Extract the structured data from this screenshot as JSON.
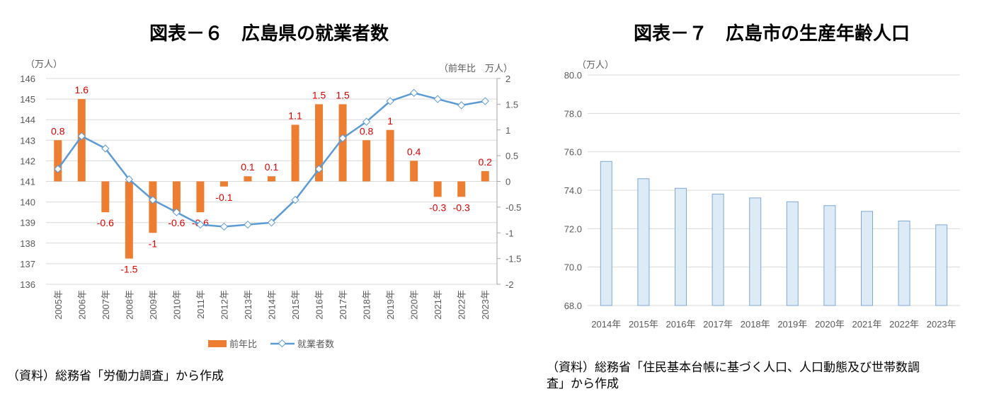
{
  "chart_data": [
    {
      "type": "bar+line",
      "title": "図表－６　広島県の就業者数",
      "left_axis_unit": "（万人）",
      "right_axis_unit": "（前年比　万人）",
      "categories": [
        "2005年",
        "2006年",
        "2007年",
        "2008年",
        "2009年",
        "2010年",
        "2011年",
        "2012年",
        "2013年",
        "2014年",
        "2015年",
        "2016年",
        "2017年",
        "2018年",
        "2019年",
        "2020年",
        "2021年",
        "2022年",
        "2023年"
      ],
      "left_ylim": [
        136,
        146
      ],
      "left_ticks": [
        "136",
        "137",
        "138",
        "139",
        "140",
        "141",
        "142",
        "143",
        "144",
        "145",
        "146"
      ],
      "right_ylim": [
        -2,
        2
      ],
      "right_ticks": [
        "-2",
        "-1.5",
        "-1",
        "-0.5",
        "0",
        "0.5",
        "1",
        "1.5",
        "2"
      ],
      "series": [
        {
          "name": "前年比",
          "type": "bar",
          "axis": "right",
          "color": "#ed7d31",
          "values": [
            0.8,
            1.6,
            -0.6,
            -1.5,
            -1,
            -0.6,
            -0.6,
            -0.1,
            0.1,
            0.1,
            1.1,
            1.5,
            1.5,
            0.8,
            1,
            0.4,
            -0.3,
            -0.3,
            0.2
          ],
          "labels": [
            "0.8",
            "1.6",
            "-0.6",
            "-1.5",
            "-1",
            "-0.6",
            "-0.6",
            "-0.1",
            "0.1",
            "0.1",
            "1.1",
            "1.5",
            "1.5",
            "0.8",
            "1",
            "0.4",
            "-0.3",
            "-0.3",
            "0.2"
          ]
        },
        {
          "name": "就業者数",
          "type": "line",
          "axis": "left",
          "color": "#5b9bd5",
          "values": [
            141.6,
            143.2,
            142.6,
            141.1,
            140.1,
            139.5,
            138.9,
            138.8,
            138.9,
            139.0,
            140.1,
            141.6,
            143.1,
            143.9,
            144.9,
            145.3,
            145.0,
            144.7,
            144.9
          ]
        }
      ],
      "legend": "bottom",
      "grid": true,
      "source": "（資料）総務省「労働力調査」から作成"
    },
    {
      "type": "bar",
      "title": "図表－７　広島市の生産年齢人口",
      "axis_unit": "（万人）",
      "categories": [
        "2014年",
        "2015年",
        "2016年",
        "2017年",
        "2018年",
        "2019年",
        "2020年",
        "2021年",
        "2022年",
        "2023年"
      ],
      "values": [
        75.5,
        74.6,
        74.1,
        73.8,
        73.6,
        73.4,
        73.2,
        72.9,
        72.4,
        72.2
      ],
      "ylim": [
        68,
        80
      ],
      "ticks": [
        "68.0",
        "70.0",
        "72.0",
        "74.0",
        "76.0",
        "78.0",
        "80.0"
      ],
      "color": "#ddebf7",
      "edge_color": "#7fa7d4",
      "grid": true,
      "source_lines": [
        "（資料）総務省「住民基本台帳に基づく人口、人口動態及び世帯数調",
        "査」から作成"
      ]
    }
  ]
}
